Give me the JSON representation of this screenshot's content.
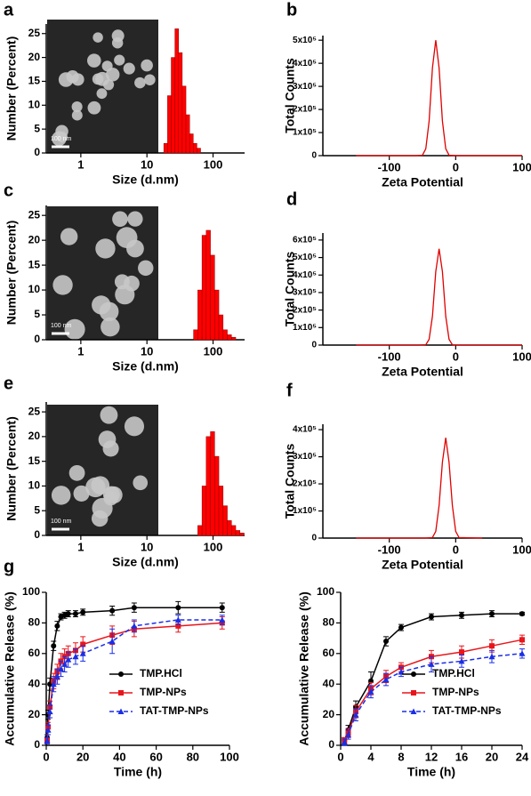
{
  "chart_data": [
    {
      "type": "histogram",
      "panel": "a",
      "xlabel": "Size (d.nm)",
      "ylabel": "Number (Percent)",
      "inset_label": "100 nm",
      "bins": [
        18,
        20.5,
        23.3,
        26.5,
        30.1,
        34.2,
        38.9,
        44.2,
        50.2,
        57.0,
        64.8
      ],
      "values": [
        2,
        12,
        20,
        26,
        21,
        14,
        8,
        4,
        2,
        1
      ],
      "color": "#ff0000",
      "xscale": "log",
      "xlim": [
        0.3,
        300
      ],
      "xticks": [
        1,
        10,
        100
      ],
      "ylim": [
        0,
        27
      ],
      "yticks": [
        0,
        5,
        10,
        15,
        20,
        25
      ]
    },
    {
      "type": "line",
      "panel": "b",
      "xlabel": "Zeta Potential",
      "ylabel": "Total Counts",
      "x": [
        -150,
        -60,
        -50,
        -45,
        -40,
        -35,
        -30,
        -25,
        -20,
        -15,
        -10,
        0,
        100
      ],
      "series": [
        {
          "color": "#e00000",
          "values": [
            0,
            0,
            2000,
            30000,
            150000,
            380000,
            500000,
            380000,
            150000,
            30000,
            2000,
            0,
            0
          ]
        }
      ],
      "xlim": [
        -200,
        100
      ],
      "xticks": [
        -100,
        0,
        100
      ],
      "ylim": [
        0,
        520000
      ],
      "yticks": [
        0,
        {
          "value": 100000,
          "label": "1x10⁵"
        },
        {
          "value": 200000,
          "label": "2x10⁵"
        },
        {
          "value": 300000,
          "label": "3x10⁵"
        },
        {
          "value": 400000,
          "label": "4x10⁵"
        },
        {
          "value": 500000,
          "label": "5x10⁵"
        }
      ]
    },
    {
      "type": "histogram",
      "panel": "c",
      "xlabel": "Size (d.nm)",
      "ylabel": "Number (Percent)",
      "inset_label": "100 nm",
      "bins": [
        50.7,
        58.8,
        68.1,
        78.8,
        91.3,
        105.7,
        122.4,
        141.8,
        164.2,
        190.1,
        220.2
      ],
      "values": [
        2,
        10,
        21,
        22,
        17,
        10,
        5,
        2,
        1,
        0.5
      ],
      "color": "#ff0000",
      "xscale": "log",
      "xlim": [
        0.3,
        300
      ],
      "xticks": [
        1,
        10,
        100
      ],
      "ylim": [
        0,
        27
      ],
      "yticks": [
        0,
        5,
        10,
        15,
        20,
        25
      ]
    },
    {
      "type": "line",
      "panel": "d",
      "xlabel": "Zeta Potential",
      "ylabel": "Total Counts",
      "x": [
        -150,
        -55,
        -45,
        -40,
        -35,
        -30,
        -25,
        -20,
        -15,
        -10,
        -5,
        0,
        100
      ],
      "series": [
        {
          "color": "#e00000",
          "values": [
            0,
            0,
            2000,
            33000,
            165000,
            420000,
            550000,
            420000,
            165000,
            33000,
            2000,
            0,
            0
          ]
        }
      ],
      "xlim": [
        -200,
        100
      ],
      "xticks": [
        -100,
        0,
        100
      ],
      "ylim": [
        0,
        640000
      ],
      "yticks": [
        0,
        {
          "value": 100000,
          "label": "1x10⁵"
        },
        {
          "value": 200000,
          "label": "2x10⁵"
        },
        {
          "value": 300000,
          "label": "3x10⁵"
        },
        {
          "value": 400000,
          "label": "4x10⁵"
        },
        {
          "value": 500000,
          "label": "5x10⁵"
        },
        {
          "value": 600000,
          "label": "6x10⁵"
        }
      ]
    },
    {
      "type": "histogram",
      "panel": "e",
      "xlabel": "Size (d.nm)",
      "ylabel": "Number (Percent)",
      "inset_label": "100 nm",
      "bins": [
        58.8,
        68.1,
        78.8,
        91.3,
        105.7,
        122.4,
        141.8,
        164.2,
        190.1,
        220.2,
        255,
        295.3
      ],
      "values": [
        2,
        10,
        20,
        21,
        16,
        10,
        6,
        3,
        2,
        1,
        0.5
      ],
      "color": "#ff0000",
      "xscale": "log",
      "xlim": [
        0.3,
        300
      ],
      "xticks": [
        1,
        10,
        100
      ],
      "ylim": [
        0,
        27
      ],
      "yticks": [
        0,
        5,
        10,
        15,
        20,
        25
      ]
    },
    {
      "type": "line",
      "panel": "f",
      "xlabel": "Zeta Potential",
      "ylabel": "Total Counts",
      "x": [
        -150,
        -45,
        -35,
        -30,
        -25,
        -20,
        -15,
        -10,
        -5,
        0,
        5,
        40
      ],
      "series": [
        {
          "color": "#e00000",
          "values": [
            0,
            0,
            2000,
            25000,
            120000,
            280000,
            370000,
            280000,
            120000,
            25000,
            2000,
            0
          ]
        }
      ],
      "xlim": [
        -200,
        100
      ],
      "xticks": [
        -100,
        0,
        100
      ],
      "ylim": [
        0,
        420000
      ],
      "yticks": [
        0,
        {
          "value": 100000,
          "label": "1x10⁵"
        },
        {
          "value": 200000,
          "label": "2x10⁵"
        },
        {
          "value": 300000,
          "label": "3x10⁵"
        },
        {
          "value": 400000,
          "label": "4x10⁵"
        }
      ]
    },
    {
      "type": "line",
      "panel": "g",
      "xlabel": "Time (h)",
      "ylabel": "Accumulative Release (%)",
      "legend": "lower right",
      "x": [
        0.5,
        1,
        2,
        4,
        6,
        8,
        10,
        12,
        16,
        20,
        36,
        48,
        72,
        96
      ],
      "series": [
        {
          "name": "TMP.HCl",
          "color": "#000000",
          "marker": "circle",
          "linestyle": "solid",
          "values": [
            5,
            20,
            40,
            65,
            78,
            84,
            85,
            86,
            86,
            87,
            88,
            90,
            90,
            90
          ],
          "errors": [
            2,
            3,
            4,
            3,
            3,
            2,
            2,
            2,
            2,
            2,
            3,
            3,
            4,
            3
          ]
        },
        {
          "name": "TMP-NPs",
          "color": "#e8151b",
          "marker": "square",
          "linestyle": "solid",
          "values": [
            3,
            12,
            25,
            42,
            48,
            55,
            58,
            60,
            62,
            66,
            72,
            76,
            78,
            80
          ],
          "errors": [
            2,
            3,
            4,
            5,
            5,
            5,
            5,
            5,
            5,
            5,
            6,
            5,
            4,
            4
          ]
        },
        {
          "name": "TAT-TMP-NPs",
          "color": "#1a2ee6",
          "marker": "triangle",
          "linestyle": "dashed",
          "values": [
            3,
            10,
            22,
            40,
            45,
            50,
            53,
            56,
            58,
            60,
            68,
            78,
            82,
            82
          ],
          "errors": [
            2,
            3,
            4,
            5,
            5,
            5,
            5,
            5,
            5,
            5,
            8,
            4,
            3,
            3
          ]
        }
      ],
      "xlim": [
        0,
        100
      ],
      "xticks": [
        0,
        20,
        40,
        60,
        80,
        100
      ],
      "ylim": [
        0,
        100
      ],
      "yticks": [
        0,
        20,
        40,
        60,
        80,
        100
      ]
    },
    {
      "type": "line",
      "xlabel": "Time (h)",
      "ylabel": "Accumulative Release (%)",
      "legend": "lower right",
      "x": [
        0.5,
        1,
        2,
        4,
        6,
        8,
        12,
        16,
        20,
        24
      ],
      "series": [
        {
          "name": "TMP.HCl",
          "color": "#000000",
          "marker": "circle",
          "linestyle": "solid",
          "values": [
            3,
            10,
            25,
            42,
            68,
            77,
            84,
            85,
            86,
            86
          ],
          "errors": [
            2,
            3,
            4,
            6,
            3,
            2,
            2,
            2,
            2,
            1
          ]
        },
        {
          "name": "TMP-NPs",
          "color": "#e8151b",
          "marker": "square",
          "linestyle": "solid",
          "values": [
            3,
            8,
            22,
            37,
            45,
            51,
            58,
            61,
            65,
            69
          ],
          "errors": [
            2,
            3,
            4,
            4,
            4,
            3,
            4,
            4,
            4,
            3
          ]
        },
        {
          "name": "TAT-TMP-NPs",
          "color": "#1a2ee6",
          "marker": "triangle",
          "linestyle": "dashed",
          "values": [
            2,
            7,
            20,
            35,
            43,
            48,
            53,
            55,
            58,
            60
          ],
          "errors": [
            2,
            3,
            4,
            4,
            4,
            3,
            5,
            4,
            4,
            3
          ]
        }
      ],
      "xlim": [
        0,
        24
      ],
      "xticks": [
        0,
        4,
        8,
        12,
        16,
        20,
        24
      ],
      "ylim": [
        0,
        100
      ],
      "yticks": [
        0,
        20,
        40,
        60,
        80,
        100
      ]
    }
  ]
}
